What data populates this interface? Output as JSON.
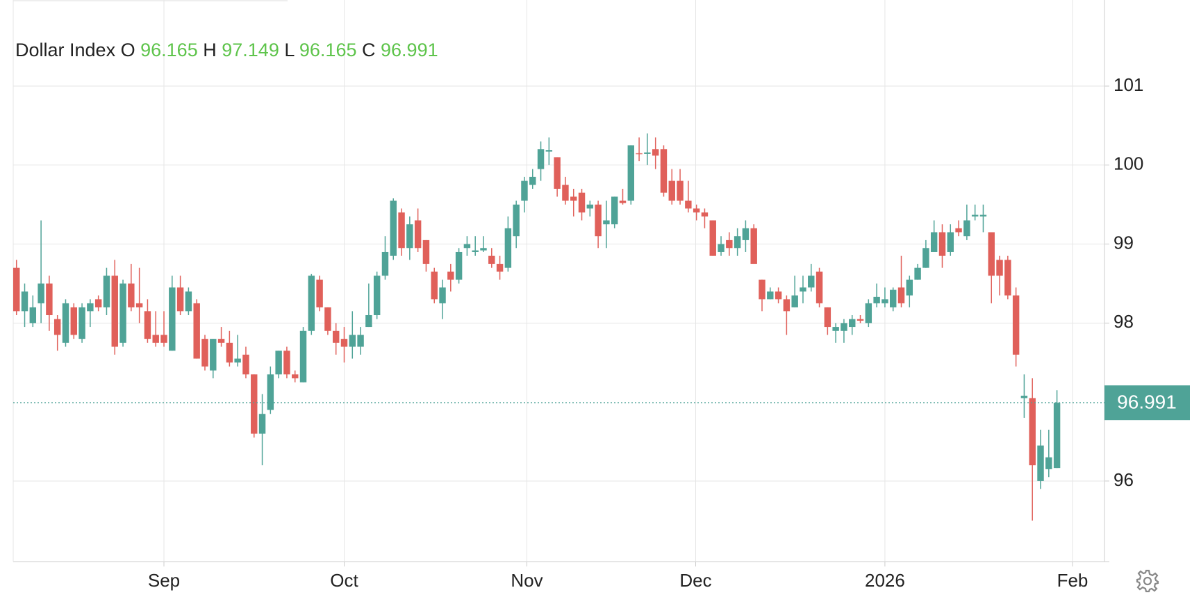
{
  "chart_data": {
    "type": "candlestick",
    "title": "Dollar Index",
    "ohlc_labels": [
      "O",
      "H",
      "L",
      "C"
    ],
    "up_color": "#4fa397",
    "down_color": "#e0605a",
    "open": [
      98.7,
      98.15,
      98.0,
      98.25,
      98.5,
      98.05,
      97.75,
      98.2,
      97.8,
      98.15,
      98.3,
      98.2,
      98.6,
      97.75,
      98.5,
      98.25,
      98.15,
      97.85,
      97.85,
      97.65,
      98.45,
      98.15,
      98.25,
      97.8,
      97.4,
      97.8,
      97.75,
      97.5,
      97.6,
      97.35,
      96.6,
      96.9,
      97.35,
      97.65,
      97.35,
      97.25,
      97.9,
      98.55,
      98.2,
      97.9,
      97.8,
      97.7,
      97.7,
      97.95,
      98.1,
      98.6,
      98.85,
      99.4,
      98.95,
      99.3,
      99.05,
      98.65,
      98.25,
      98.65,
      98.55,
      98.95,
      98.9,
      98.92,
      98.85,
      98.75,
      98.7,
      99.1,
      99.55,
      99.75,
      99.95,
      100.17,
      100.1,
      99.75,
      99.6,
      99.65,
      99.45,
      99.5,
      99.25,
      99.25,
      99.55,
      99.55,
      100.15,
      100.14,
      100.2,
      100.2,
      99.8,
      99.8,
      99.55,
      99.45,
      99.4,
      99.3,
      98.9,
      99.05,
      98.95,
      99.05,
      99.2,
      98.55,
      98.3,
      98.4,
      98.3,
      98.2,
      98.4,
      98.45,
      98.65,
      98.2,
      97.9,
      97.9,
      97.95,
      98.05,
      98.0,
      98.25,
      98.25,
      98.2,
      98.45,
      98.35,
      98.55,
      98.7,
      98.9,
      99.15,
      98.9,
      99.2,
      99.1,
      99.35,
      99.35,
      99.15,
      98.8,
      98.8,
      98.35,
      97.05,
      97.05,
      96.0,
      96.15,
      96.165
    ],
    "high": [
      98.8,
      98.5,
      98.35,
      99.3,
      98.6,
      98.1,
      98.3,
      98.25,
      98.25,
      98.3,
      98.35,
      98.7,
      98.8,
      98.55,
      98.75,
      98.7,
      98.3,
      98.15,
      98.15,
      98.6,
      98.6,
      98.45,
      98.3,
      97.85,
      97.8,
      97.95,
      97.9,
      97.85,
      97.7,
      97.35,
      97.1,
      97.45,
      97.65,
      97.7,
      97.4,
      97.95,
      98.62,
      98.6,
      98.2,
      98.0,
      97.95,
      98.15,
      97.95,
      98.5,
      98.65,
      99.1,
      99.58,
      99.45,
      99.35,
      99.45,
      99.05,
      98.7,
      98.55,
      98.75,
      98.95,
      99.1,
      99.1,
      99.1,
      98.95,
      98.85,
      99.35,
      99.55,
      99.85,
      99.95,
      100.3,
      100.35,
      100.1,
      99.85,
      99.7,
      99.7,
      99.55,
      99.55,
      99.55,
      99.6,
      99.7,
      100.25,
      100.35,
      100.4,
      100.35,
      100.25,
      99.95,
      99.95,
      99.8,
      99.5,
      99.45,
      99.3,
      99.1,
      99.15,
      99.2,
      99.3,
      99.25,
      98.55,
      98.45,
      98.45,
      98.35,
      98.6,
      98.6,
      98.75,
      98.7,
      98.2,
      98.0,
      98.05,
      98.1,
      98.1,
      98.3,
      98.5,
      98.45,
      98.45,
      98.85,
      98.6,
      98.75,
      99.05,
      99.3,
      99.25,
      99.25,
      99.3,
      99.5,
      99.5,
      99.5,
      99.15,
      98.85,
      98.85,
      98.45,
      97.35,
      97.3,
      96.65,
      96.65,
      97.149
    ],
    "low": [
      98.1,
      97.95,
      97.95,
      98.0,
      97.9,
      97.65,
      97.7,
      97.8,
      97.75,
      97.95,
      98.15,
      98.1,
      97.6,
      97.7,
      98.15,
      98.0,
      97.75,
      97.7,
      97.7,
      97.65,
      98.1,
      98.1,
      97.55,
      97.4,
      97.3,
      97.7,
      97.45,
      97.45,
      97.3,
      96.55,
      96.2,
      96.85,
      97.3,
      97.3,
      97.25,
      97.25,
      97.85,
      98.15,
      97.85,
      97.6,
      97.5,
      97.55,
      97.6,
      97.95,
      98.05,
      98.55,
      98.8,
      98.85,
      98.8,
      98.9,
      98.65,
      98.25,
      98.05,
      98.4,
      98.5,
      98.85,
      98.85,
      98.9,
      98.7,
      98.55,
      98.65,
      98.95,
      99.4,
      99.7,
      99.8,
      100.0,
      99.6,
      99.5,
      99.35,
      99.3,
      99.35,
      98.95,
      98.95,
      99.2,
      99.5,
      99.5,
      100.05,
      100.0,
      99.95,
      99.6,
      99.5,
      99.5,
      99.4,
      99.3,
      99.2,
      98.85,
      98.85,
      98.85,
      98.85,
      98.9,
      98.75,
      98.15,
      98.3,
      98.25,
      97.85,
      98.2,
      98.25,
      98.4,
      98.2,
      97.85,
      97.75,
      97.75,
      97.85,
      98.0,
      97.95,
      98.2,
      98.2,
      98.15,
      98.2,
      98.2,
      98.55,
      98.7,
      98.9,
      98.7,
      98.85,
      99.1,
      99.05,
      99.3,
      99.15,
      98.25,
      98.35,
      98.3,
      97.45,
      96.8,
      95.5,
      95.9,
      96.05,
      96.165
    ],
    "close": [
      98.15,
      98.4,
      98.2,
      98.5,
      98.1,
      97.85,
      98.25,
      97.85,
      98.2,
      98.25,
      98.2,
      98.6,
      97.7,
      98.5,
      98.2,
      98.2,
      97.8,
      97.75,
      97.75,
      98.45,
      98.15,
      98.4,
      97.55,
      97.45,
      97.8,
      97.75,
      97.5,
      97.55,
      97.35,
      96.6,
      96.85,
      97.35,
      97.65,
      97.35,
      97.3,
      97.9,
      98.6,
      98.2,
      97.9,
      97.75,
      97.7,
      97.85,
      97.85,
      98.1,
      98.6,
      98.9,
      99.55,
      98.95,
      99.25,
      98.95,
      98.75,
      98.3,
      98.45,
      98.55,
      98.9,
      99.0,
      98.92,
      98.95,
      98.75,
      98.65,
      99.2,
      99.5,
      99.8,
      99.85,
      100.2,
      100.19,
      99.7,
      99.55,
      99.55,
      99.4,
      99.5,
      99.1,
      99.3,
      99.6,
      99.52,
      100.25,
      100.14,
      100.16,
      100.12,
      99.65,
      99.55,
      99.55,
      99.45,
      99.4,
      99.35,
      98.85,
      99.0,
      98.95,
      99.1,
      99.2,
      98.75,
      98.3,
      98.4,
      98.3,
      98.15,
      98.35,
      98.45,
      98.6,
      98.25,
      97.95,
      97.95,
      98.0,
      98.05,
      98.03,
      98.25,
      98.33,
      98.3,
      98.42,
      98.25,
      98.55,
      98.7,
      98.95,
      99.15,
      98.85,
      99.15,
      99.15,
      99.3,
      99.37,
      99.37,
      98.6,
      98.6,
      98.35,
      97.6,
      97.08,
      96.2,
      96.45,
      96.3,
      96.991
    ],
    "xlim": [
      -0.4,
      132.8
    ],
    "xticks": [
      {
        "value": 18,
        "label": "Sep"
      },
      {
        "value": 40,
        "label": "Oct"
      },
      {
        "value": 62.3,
        "label": "Nov"
      },
      {
        "value": 82.9,
        "label": "Dec"
      },
      {
        "value": 106,
        "label": "2026"
      },
      {
        "value": 128.9,
        "label": "Feb"
      }
    ],
    "ylim": [
      94.98,
      102.09
    ],
    "yticks": [
      96,
      98,
      99,
      100,
      101
    ],
    "grid": true
  }
}
